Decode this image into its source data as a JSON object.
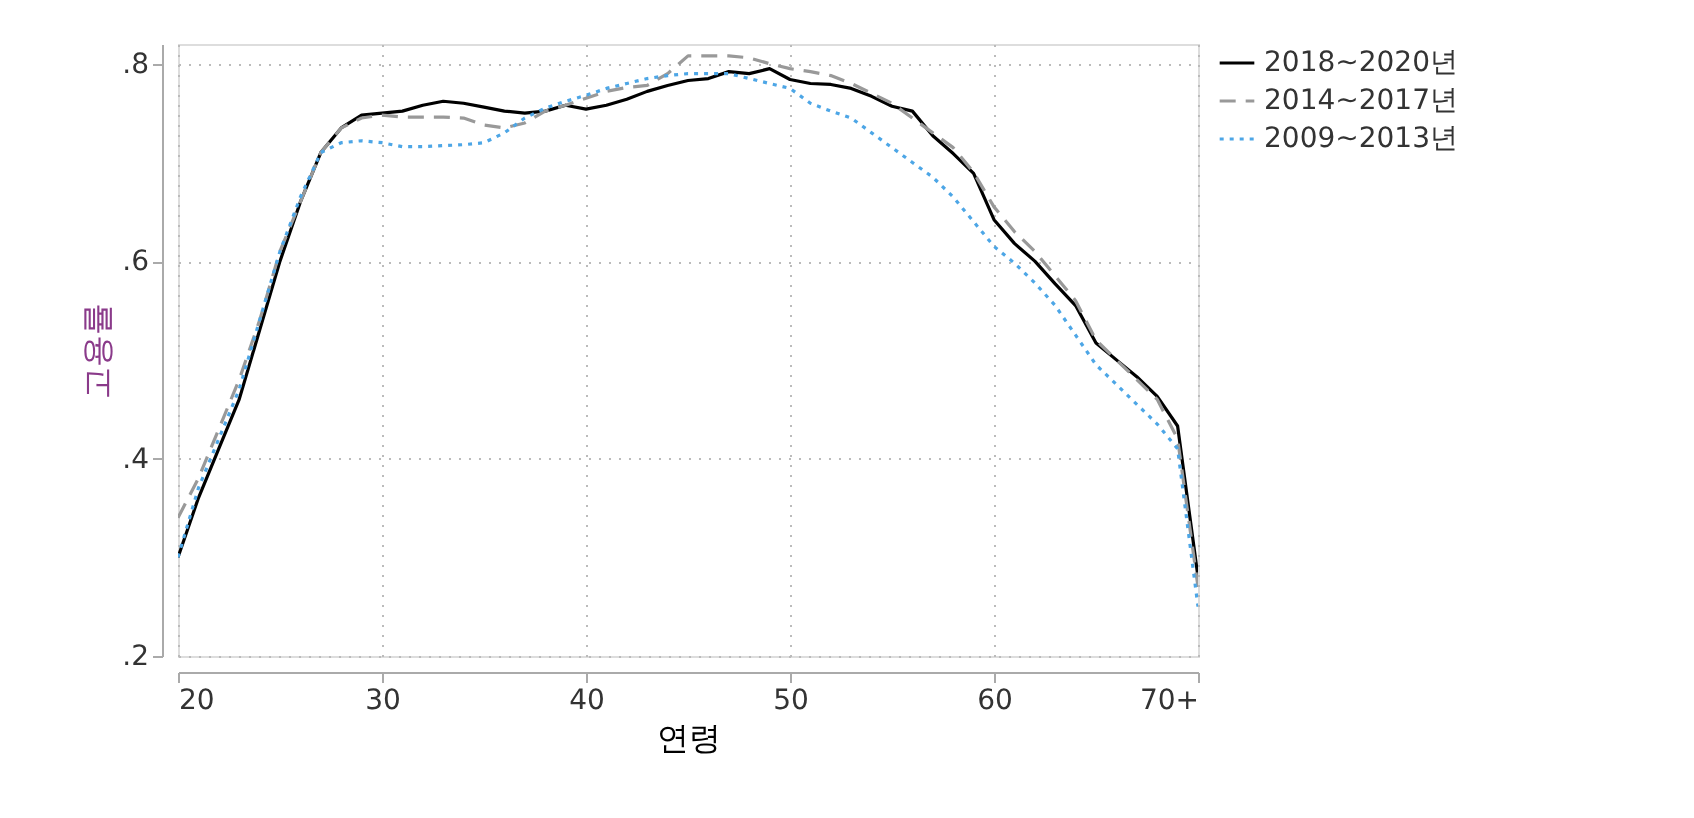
{
  "chart_data": {
    "type": "line",
    "xlabel": "연령",
    "ylabel": "고용률",
    "x": [
      20,
      21,
      22,
      23,
      24,
      25,
      26,
      27,
      28,
      29,
      30,
      31,
      32,
      33,
      34,
      35,
      36,
      37,
      38,
      39,
      40,
      41,
      42,
      43,
      44,
      45,
      46,
      47,
      48,
      49,
      50,
      51,
      52,
      53,
      54,
      55,
      56,
      57,
      58,
      59,
      60,
      61,
      62,
      63,
      64,
      65,
      66,
      67,
      68,
      69,
      70
    ],
    "series": [
      {
        "name": "2018~2020년",
        "color": "#000000",
        "line_style": "solid",
        "values": [
          0.3,
          0.36,
          0.41,
          0.46,
          0.53,
          0.6,
          0.66,
          0.71,
          0.735,
          0.748,
          0.75,
          0.752,
          0.758,
          0.762,
          0.76,
          0.756,
          0.752,
          0.75,
          0.752,
          0.758,
          0.754,
          0.758,
          0.764,
          0.772,
          0.778,
          0.783,
          0.785,
          0.792,
          0.79,
          0.795,
          0.784,
          0.78,
          0.779,
          0.775,
          0.767,
          0.757,
          0.752,
          0.727,
          0.709,
          0.689,
          0.642,
          0.618,
          0.6,
          0.577,
          0.555,
          0.517,
          0.5,
          0.483,
          0.463,
          0.433,
          0.28
        ]
      },
      {
        "name": "2014~2017년",
        "color": "#999999",
        "line_style": "dashed",
        "values": [
          0.34,
          0.38,
          0.43,
          0.48,
          0.54,
          0.61,
          0.66,
          0.71,
          0.735,
          0.745,
          0.748,
          0.746,
          0.746,
          0.746,
          0.745,
          0.738,
          0.735,
          0.74,
          0.752,
          0.758,
          0.765,
          0.772,
          0.776,
          0.778,
          0.79,
          0.808,
          0.808,
          0.808,
          0.806,
          0.8,
          0.795,
          0.792,
          0.788,
          0.78,
          0.77,
          0.76,
          0.745,
          0.73,
          0.715,
          0.69,
          0.655,
          0.63,
          0.61,
          0.585,
          0.56,
          0.52,
          0.5,
          0.48,
          0.46,
          0.42,
          0.27
        ]
      },
      {
        "name": "2009~2013년",
        "color": "#4da6e6",
        "line_style": "dotted",
        "values": [
          0.3,
          0.37,
          0.42,
          0.47,
          0.54,
          0.61,
          0.665,
          0.71,
          0.72,
          0.722,
          0.72,
          0.716,
          0.716,
          0.717,
          0.718,
          0.72,
          0.73,
          0.745,
          0.755,
          0.762,
          0.768,
          0.775,
          0.78,
          0.785,
          0.788,
          0.79,
          0.79,
          0.79,
          0.785,
          0.78,
          0.775,
          0.76,
          0.752,
          0.745,
          0.73,
          0.715,
          0.7,
          0.685,
          0.665,
          0.64,
          0.615,
          0.598,
          0.578,
          0.555,
          0.525,
          0.495,
          0.475,
          0.455,
          0.435,
          0.41,
          0.25
        ]
      }
    ],
    "xlim": [
      20,
      70
    ],
    "xticks": [
      20,
      30,
      40,
      50,
      60,
      {
        "value": 70,
        "label": "70+"
      }
    ],
    "ylim": [
      0.2,
      0.82
    ],
    "yticks": [
      {
        "value": 0.2,
        "label": ".2"
      },
      {
        "value": 0.4,
        "label": ".4"
      },
      {
        "value": 0.6,
        "label": ".6"
      },
      {
        "value": 0.8,
        "label": ".8"
      }
    ],
    "grid": true,
    "legend": "right",
    "marker": "none"
  }
}
